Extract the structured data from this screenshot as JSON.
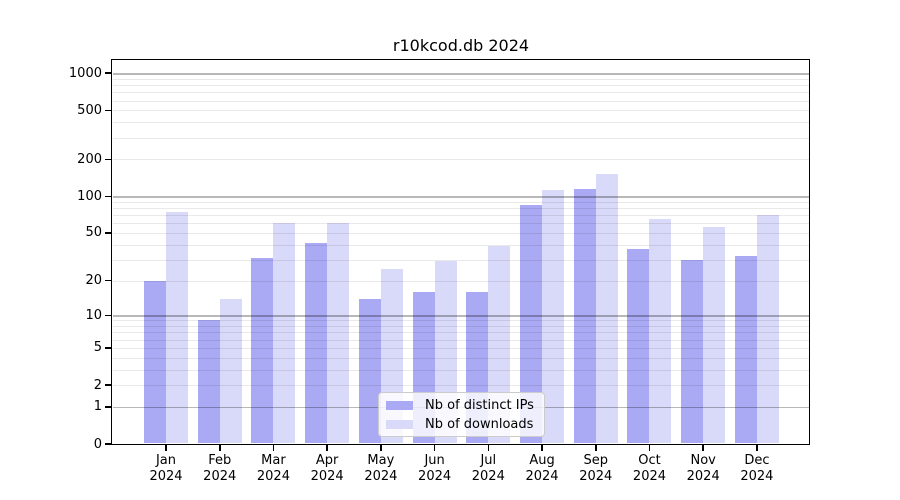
{
  "chart_data": {
    "type": "bar",
    "title": "r10kcod.db 2024",
    "year_label": "2024",
    "categories": [
      "Jan",
      "Feb",
      "Mar",
      "Apr",
      "May",
      "Jun",
      "Jul",
      "Aug",
      "Sep",
      "Oct",
      "Nov",
      "Dec"
    ],
    "series": [
      {
        "name": "Nb of distinct IPs",
        "color": "#a9a9f4",
        "values": [
          20,
          9,
          31,
          41,
          14,
          16,
          16,
          85,
          115,
          37,
          30,
          32
        ]
      },
      {
        "name": "Nb of downloads",
        "color": "#d9d9f9",
        "values": [
          75,
          14,
          61,
          60,
          25,
          29,
          39,
          113,
          152,
          65,
          56,
          70
        ]
      }
    ],
    "xlabel": "",
    "ylabel": "",
    "yscale": "log1p",
    "ylim": [
      0,
      1280
    ],
    "yticks": [
      1000,
      500,
      200,
      100,
      50,
      20,
      10,
      5,
      2,
      1,
      0
    ],
    "grid": {
      "enabled": true,
      "major_lines": [
        1,
        10,
        100,
        1000
      ],
      "minor_lines": "2-9 per decade"
    },
    "legend_position": "lower center"
  }
}
